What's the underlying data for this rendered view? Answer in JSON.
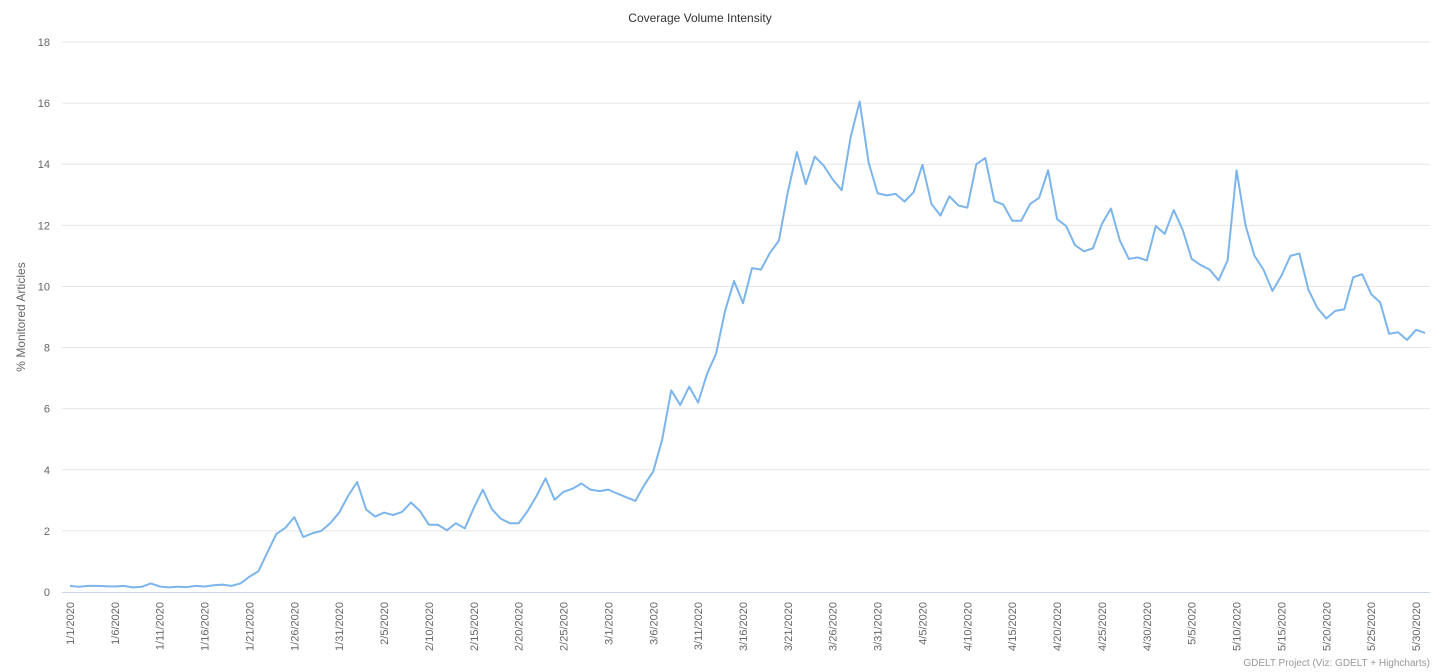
{
  "chart_data": {
    "type": "line",
    "title": "Coverage Volume Intensity",
    "y_label": "% Monitored Articles",
    "credits": "GDELT Project (Viz: GDELT + Highcharts)",
    "categories": [
      "1/1/2020",
      null,
      null,
      null,
      null,
      "1/6/2020",
      null,
      null,
      null,
      null,
      "1/11/2020",
      null,
      null,
      null,
      null,
      "1/16/2020",
      null,
      null,
      null,
      null,
      "1/21/2020",
      null,
      null,
      null,
      null,
      "1/26/2020",
      null,
      null,
      null,
      null,
      "1/31/2020",
      null,
      null,
      null,
      null,
      "2/5/2020",
      null,
      null,
      null,
      null,
      "2/10/2020",
      null,
      null,
      null,
      null,
      "2/15/2020",
      null,
      null,
      null,
      null,
      "2/20/2020",
      null,
      null,
      null,
      null,
      "2/25/2020",
      null,
      null,
      null,
      null,
      "3/1/2020",
      null,
      null,
      null,
      null,
      "3/6/2020",
      null,
      null,
      null,
      null,
      "3/11/2020",
      null,
      null,
      null,
      null,
      "3/16/2020",
      null,
      null,
      null,
      null,
      "3/21/2020",
      null,
      null,
      null,
      null,
      "3/26/2020",
      null,
      null,
      null,
      null,
      "3/31/2020",
      null,
      null,
      null,
      null,
      "4/5/2020",
      null,
      null,
      null,
      null,
      "4/10/2020",
      null,
      null,
      null,
      null,
      "4/15/2020",
      null,
      null,
      null,
      null,
      "4/20/2020",
      null,
      null,
      null,
      null,
      "4/25/2020",
      null,
      null,
      null,
      null,
      "4/30/2020",
      null,
      null,
      null,
      null,
      "5/5/2020",
      null,
      null,
      null,
      null,
      "5/10/2020",
      null,
      null,
      null,
      null,
      "5/15/2020",
      null,
      null,
      null,
      null,
      "5/20/2020",
      null,
      null,
      null,
      null,
      "5/25/2020",
      null,
      null,
      null,
      null,
      "5/30/2020",
      null
    ],
    "series": [
      {
        "color": "#7cb5ec",
        "values": [
          0.2,
          0.17,
          0.2,
          0.2,
          0.19,
          0.18,
          0.2,
          0.15,
          0.17,
          0.28,
          0.18,
          0.15,
          0.17,
          0.16,
          0.2,
          0.18,
          0.22,
          0.24,
          0.2,
          0.28,
          0.5,
          0.68,
          1.3,
          1.9,
          2.1,
          2.45,
          1.8,
          1.92,
          2.0,
          2.25,
          2.6,
          3.15,
          3.6,
          2.7,
          2.47,
          2.6,
          2.52,
          2.62,
          2.93,
          2.65,
          2.2,
          2.2,
          2.02,
          2.25,
          2.08,
          2.75,
          3.35,
          2.72,
          2.4,
          2.25,
          2.25,
          2.65,
          3.15,
          3.72,
          3.02,
          3.28,
          3.38,
          3.55,
          3.35,
          3.3,
          3.35,
          3.22,
          3.1,
          2.98,
          3.5,
          3.95,
          5.0,
          6.6,
          6.12,
          6.72,
          6.2,
          7.15,
          7.8,
          9.2,
          10.18,
          9.45,
          10.6,
          10.55,
          11.1,
          11.5,
          13.1,
          14.4,
          13.35,
          14.25,
          13.95,
          13.5,
          13.15,
          14.9,
          16.05,
          14.05,
          13.05,
          12.98,
          13.03,
          12.78,
          13.08,
          13.98,
          12.7,
          12.32,
          12.95,
          12.65,
          12.58,
          14.0,
          14.2,
          12.8,
          12.68,
          12.15,
          12.15,
          12.7,
          12.9,
          13.8,
          12.2,
          11.98,
          11.35,
          11.15,
          11.25,
          12.05,
          12.55,
          11.5,
          10.9,
          10.95,
          10.85,
          11.98,
          11.72,
          12.5,
          11.85,
          10.9,
          10.7,
          10.55,
          10.2,
          10.85,
          13.8,
          12.0,
          11.0,
          10.55,
          9.85,
          10.35,
          11.0,
          11.08,
          9.9,
          9.3,
          8.95,
          9.2,
          9.25,
          10.3,
          10.4,
          9.75,
          9.48,
          8.45,
          8.5,
          8.25,
          8.58,
          8.48
        ]
      }
    ],
    "ylim": [
      0,
      18
    ],
    "yticks": [
      0,
      2,
      4,
      6,
      8,
      10,
      12,
      14,
      16,
      18
    ],
    "grid": true
  }
}
